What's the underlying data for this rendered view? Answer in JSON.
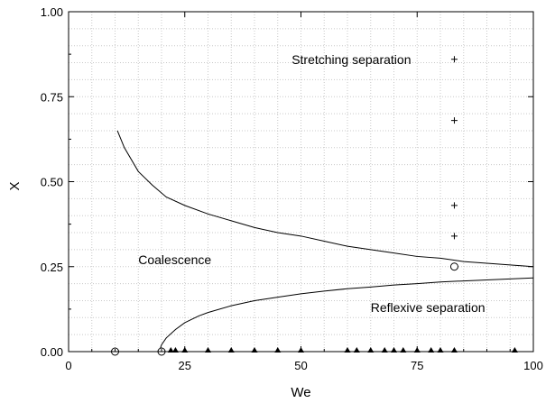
{
  "chart_data": {
    "type": "scatter",
    "title": "",
    "xlabel": "We",
    "ylabel": "X",
    "xlim": [
      0,
      100
    ],
    "ylim": [
      0,
      1
    ],
    "xticks": [
      "0",
      "25",
      "50",
      "75",
      "100"
    ],
    "yticks": [
      "0.00",
      "0.25",
      "0.50",
      "0.75",
      "1.00"
    ],
    "minor_x_step": 5,
    "minor_y_step": 0.05,
    "grid": "dotted",
    "legend": "none",
    "region_labels": [
      {
        "text": "Stretching separation",
        "x": 48,
        "y": 0.86
      },
      {
        "text": "Coalescence",
        "x": 15,
        "y": 0.27
      },
      {
        "text": "Reflexive separation",
        "x": 65,
        "y": 0.13
      }
    ],
    "curves": [
      {
        "x": [
          10.5,
          12,
          15,
          18,
          21,
          25,
          30,
          35,
          40,
          45,
          50,
          55,
          60,
          65,
          70,
          75,
          80,
          85,
          90,
          95,
          100
        ],
        "y": [
          0.65,
          0.6,
          0.53,
          0.49,
          0.455,
          0.43,
          0.405,
          0.385,
          0.365,
          0.35,
          0.34,
          0.325,
          0.31,
          0.3,
          0.29,
          0.28,
          0.275,
          0.265,
          0.26,
          0.255,
          0.25
        ]
      },
      {
        "x": [
          19.5,
          20,
          21,
          23,
          25,
          28,
          30,
          35,
          40,
          45,
          50,
          55,
          60,
          65,
          70,
          75,
          80,
          85,
          90,
          95,
          100
        ],
        "y": [
          0.0,
          0.02,
          0.04,
          0.065,
          0.085,
          0.105,
          0.115,
          0.135,
          0.15,
          0.16,
          0.17,
          0.178,
          0.185,
          0.19,
          0.196,
          0.2,
          0.205,
          0.208,
          0.211,
          0.214,
          0.217
        ]
      }
    ],
    "series": [
      {
        "marker": "plus",
        "x": [
          83,
          83,
          83,
          83
        ],
        "y": [
          0.86,
          0.68,
          0.43,
          0.34
        ]
      },
      {
        "marker": "open-circle",
        "x": [
          10,
          20,
          83
        ],
        "y": [
          0.0,
          0.0,
          0.25
        ]
      },
      {
        "marker": "filled-triangle",
        "x": [
          22,
          23,
          25,
          30,
          35,
          40,
          45,
          50,
          60,
          62,
          65,
          68,
          70,
          72,
          75,
          78,
          80,
          83,
          96
        ],
        "y": [
          0,
          0,
          0,
          0,
          0,
          0,
          0,
          0,
          0,
          0,
          0,
          0,
          0,
          0,
          0,
          0,
          0,
          0,
          0
        ]
      }
    ]
  }
}
